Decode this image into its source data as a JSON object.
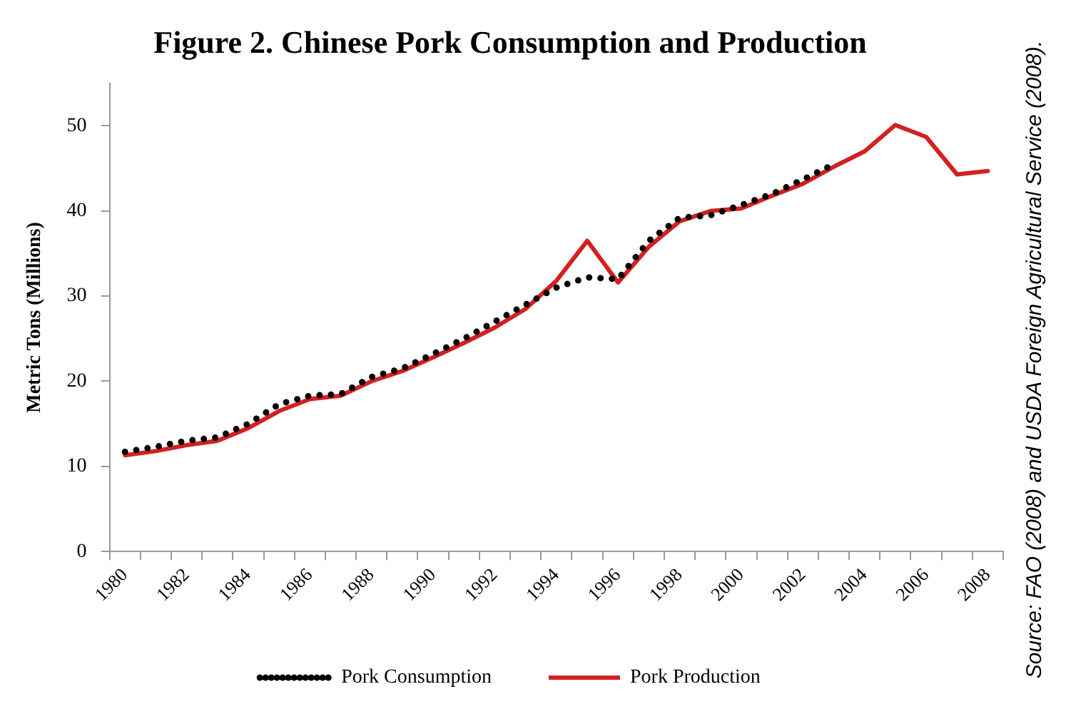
{
  "chart_data": {
    "type": "line",
    "title": "Figure 2. Chinese Pork Consumption and Production",
    "ylabel": "Metric Tons (Millions)",
    "categories": [
      "1980",
      null,
      "1982",
      null,
      "1984",
      null,
      "1986",
      null,
      "1988",
      null,
      "1990",
      null,
      "1992",
      null,
      "1994",
      null,
      "1996",
      null,
      "1998",
      null,
      "2000",
      null,
      "2002",
      null,
      "2004",
      null,
      "2006",
      null,
      "2008"
    ],
    "series": [
      {
        "name": "Pork Consumption",
        "color": "#000000",
        "line_style": "dotted",
        "values": [
          11.7,
          12.3,
          13.0,
          13.4,
          15.0,
          17.3,
          18.3,
          18.5,
          20.5,
          21.5,
          23.2,
          25.0,
          27.0,
          29.0,
          31.0,
          32.2,
          32.0,
          36.5,
          39.2,
          39.5,
          40.7,
          42.0,
          43.7,
          45.5,
          null,
          null,
          null,
          null,
          null
        ]
      },
      {
        "name": "Pork Production",
        "color": "#d42020",
        "line_style": "solid",
        "values": [
          11.3,
          11.8,
          12.5,
          13.0,
          14.5,
          16.5,
          17.9,
          18.3,
          20.0,
          21.2,
          22.8,
          24.5,
          26.3,
          28.5,
          31.8,
          36.5,
          31.6,
          35.8,
          38.8,
          40.0,
          40.3,
          41.8,
          43.2,
          45.2,
          47.0,
          50.1,
          48.7,
          44.3,
          44.7
        ]
      }
    ],
    "ylim": [
      0,
      55
    ],
    "yticks": [
      0,
      10,
      20,
      30,
      40,
      50
    ],
    "grid": false,
    "legend": "bottom",
    "marker": "none",
    "annotations": [
      "Source: FAO (2008) and USDA Foreign Agricultural Service (2008)."
    ]
  }
}
